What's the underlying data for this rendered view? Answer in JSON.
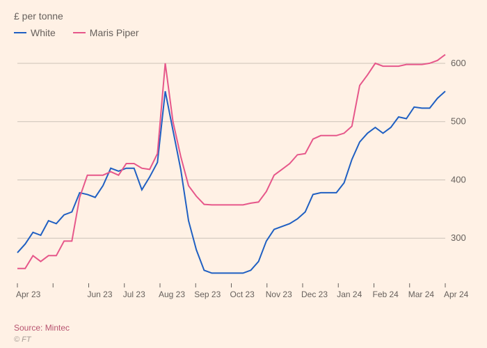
{
  "chart": {
    "type": "line",
    "y_axis_title": "£ per tonne",
    "background_color": "#fff1e5",
    "grid_color": "#ccc2b8",
    "text_color": "#66605c",
    "label_fontsize": 14,
    "tick_fontsize": 13,
    "ylim": [
      225,
      625
    ],
    "y_ticks": [
      300,
      400,
      500,
      600
    ],
    "x_labels": [
      "Apr 23",
      "",
      "Jun 23",
      "Jul 23",
      "Aug 23",
      "Sep 23",
      "Oct 23",
      "Nov 23",
      "Dec 23",
      "Jan 24",
      "Feb 24",
      "Mar 24",
      "Apr 24"
    ],
    "series": [
      {
        "name": "White",
        "color": "#1f5fc2",
        "values": [
          275,
          290,
          310,
          305,
          330,
          325,
          340,
          345,
          378,
          375,
          370,
          390,
          420,
          415,
          420,
          420,
          383,
          405,
          430,
          552,
          485,
          418,
          330,
          280,
          245,
          240,
          240,
          240,
          240,
          240,
          245,
          260,
          295,
          315,
          320,
          325,
          333,
          345,
          375,
          378,
          378,
          378,
          395,
          435,
          465,
          480,
          490,
          480,
          490,
          508,
          505,
          525,
          523,
          523,
          540,
          552
        ]
      },
      {
        "name": "Maris Piper",
        "color": "#e6578a",
        "values": [
          248,
          248,
          270,
          260,
          270,
          270,
          295,
          295,
          370,
          408,
          408,
          408,
          414,
          408,
          428,
          428,
          420,
          418,
          445,
          600,
          500,
          440,
          390,
          372,
          358,
          357,
          357,
          357,
          357,
          357,
          360,
          362,
          380,
          408,
          418,
          428,
          443,
          445,
          470,
          476,
          476,
          476,
          480,
          492,
          562,
          580,
          600,
          595,
          595,
          595,
          598,
          598,
          598,
          600,
          605,
          615
        ]
      }
    ]
  },
  "source": "Source: Mintec",
  "copyright": "© FT"
}
